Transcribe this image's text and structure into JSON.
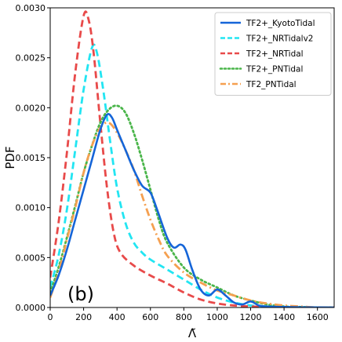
{
  "chart_data": {
    "type": "line",
    "panel_label": "(b)",
    "xlabel": "Λ̃",
    "ylabel": "PDF",
    "xlim": [
      0,
      1700
    ],
    "ylim": [
      0,
      0.003
    ],
    "xticks": [
      0,
      200,
      400,
      600,
      800,
      1000,
      1200,
      1400,
      1600
    ],
    "xtick_labels": [
      "0",
      "200",
      "400",
      "600",
      "800",
      "1000",
      "1200",
      "1400",
      "1600"
    ],
    "yticks": [
      0,
      0.0005,
      0.001,
      0.0015,
      0.002,
      0.0025,
      0.003
    ],
    "ytick_labels": [
      "0.0000",
      "0.0005",
      "0.0010",
      "0.0015",
      "0.0020",
      "0.0025",
      "0.0030"
    ],
    "grid": false,
    "legend_position": "top-right",
    "series": [
      {
        "name": "TF2+_KyotoTidal",
        "color": "#1565d8",
        "style": "solid",
        "points": [
          [
            0,
            0.00012
          ],
          [
            50,
            0.00032
          ],
          [
            100,
            0.00058
          ],
          [
            150,
            0.00088
          ],
          [
            200,
            0.00118
          ],
          [
            250,
            0.00148
          ],
          [
            300,
            0.00178
          ],
          [
            340,
            0.00193
          ],
          [
            370,
            0.0019
          ],
          [
            400,
            0.00178
          ],
          [
            450,
            0.00158
          ],
          [
            500,
            0.00138
          ],
          [
            550,
            0.00122
          ],
          [
            600,
            0.00115
          ],
          [
            640,
            0.00098
          ],
          [
            700,
            0.0007
          ],
          [
            740,
            0.0006
          ],
          [
            780,
            0.00063
          ],
          [
            810,
            0.00058
          ],
          [
            850,
            0.00038
          ],
          [
            900,
            0.00018
          ],
          [
            950,
            0.00012
          ],
          [
            1000,
            0.00018
          ],
          [
            1050,
            0.00012
          ],
          [
            1100,
            5e-05
          ],
          [
            1150,
            3e-05
          ],
          [
            1200,
            6e-05
          ],
          [
            1250,
            2e-05
          ],
          [
            1300,
            1e-05
          ],
          [
            1400,
            5e-06
          ],
          [
            1500,
            2e-06
          ],
          [
            1600,
            1e-06
          ],
          [
            1700,
            0.0
          ]
        ]
      },
      {
        "name": "TF2+_NRTidalv2",
        "color": "#22e5f2",
        "style": "dashed",
        "points": [
          [
            0,
            0.0002
          ],
          [
            50,
            0.00052
          ],
          [
            100,
            0.00098
          ],
          [
            150,
            0.00158
          ],
          [
            200,
            0.00218
          ],
          [
            250,
            0.0026
          ],
          [
            280,
            0.00255
          ],
          [
            320,
            0.00215
          ],
          [
            360,
            0.00165
          ],
          [
            400,
            0.0012
          ],
          [
            450,
            0.00085
          ],
          [
            500,
            0.00065
          ],
          [
            550,
            0.00055
          ],
          [
            600,
            0.00048
          ],
          [
            700,
            0.00038
          ],
          [
            800,
            0.00028
          ],
          [
            900,
            0.00018
          ],
          [
            1000,
            0.0001
          ],
          [
            1100,
            5e-05
          ],
          [
            1200,
            2e-05
          ],
          [
            1300,
            1e-05
          ],
          [
            1400,
            5e-06
          ],
          [
            1500,
            2e-06
          ],
          [
            1600,
            0.0
          ],
          [
            1700,
            0.0
          ]
        ]
      },
      {
        "name": "TF2+_NRTidal",
        "color": "#e84a4a",
        "style": "dashed",
        "points": [
          [
            0,
            0.0003
          ],
          [
            50,
            0.00085
          ],
          [
            100,
            0.00155
          ],
          [
            150,
            0.00235
          ],
          [
            200,
            0.00292
          ],
          [
            230,
            0.00288
          ],
          [
            260,
            0.00255
          ],
          [
            300,
            0.00185
          ],
          [
            340,
            0.0012
          ],
          [
            380,
            0.00075
          ],
          [
            420,
            0.00055
          ],
          [
            500,
            0.00042
          ],
          [
            600,
            0.00032
          ],
          [
            700,
            0.00024
          ],
          [
            800,
            0.00015
          ],
          [
            900,
            8e-05
          ],
          [
            1000,
            4e-05
          ],
          [
            1100,
            2e-05
          ],
          [
            1200,
            1e-05
          ],
          [
            1300,
            5e-06
          ],
          [
            1400,
            0.0
          ],
          [
            1700,
            0.0
          ]
        ]
      },
      {
        "name": "TF2+_PNTidal",
        "color": "#4ab54a",
        "style": "dotted",
        "points": [
          [
            0,
            0.00015
          ],
          [
            50,
            0.0004
          ],
          [
            100,
            0.0007
          ],
          [
            150,
            0.00102
          ],
          [
            200,
            0.00135
          ],
          [
            250,
            0.00162
          ],
          [
            300,
            0.00185
          ],
          [
            350,
            0.00198
          ],
          [
            400,
            0.00202
          ],
          [
            450,
            0.00195
          ],
          [
            500,
            0.00175
          ],
          [
            550,
            0.00148
          ],
          [
            600,
            0.00118
          ],
          [
            650,
            0.00088
          ],
          [
            700,
            0.00065
          ],
          [
            800,
            0.0004
          ],
          [
            900,
            0.00028
          ],
          [
            1000,
            0.0002
          ],
          [
            1100,
            0.00012
          ],
          [
            1200,
            7e-05
          ],
          [
            1300,
            3e-05
          ],
          [
            1400,
            1e-05
          ],
          [
            1500,
            5e-06
          ],
          [
            1600,
            0.0
          ],
          [
            1700,
            0.0
          ]
        ]
      },
      {
        "name": "TF2_PNTidal",
        "color": "#f5a050",
        "style": "dashdot",
        "points": [
          [
            0,
            0.0001
          ],
          [
            50,
            0.00035
          ],
          [
            100,
            0.00068
          ],
          [
            150,
            0.001
          ],
          [
            200,
            0.00135
          ],
          [
            250,
            0.00162
          ],
          [
            300,
            0.0018
          ],
          [
            350,
            0.00185
          ],
          [
            400,
            0.00175
          ],
          [
            450,
            0.00158
          ],
          [
            500,
            0.00138
          ],
          [
            550,
            0.00112
          ],
          [
            600,
            0.00088
          ],
          [
            650,
            0.00068
          ],
          [
            700,
            0.00052
          ],
          [
            800,
            0.00035
          ],
          [
            900,
            0.00025
          ],
          [
            1000,
            0.00017
          ],
          [
            1100,
            0.00012
          ],
          [
            1200,
            7e-05
          ],
          [
            1300,
            4e-05
          ],
          [
            1400,
            2e-05
          ],
          [
            1500,
            1e-05
          ],
          [
            1600,
            0.0
          ],
          [
            1700,
            0.0
          ]
        ]
      }
    ]
  }
}
